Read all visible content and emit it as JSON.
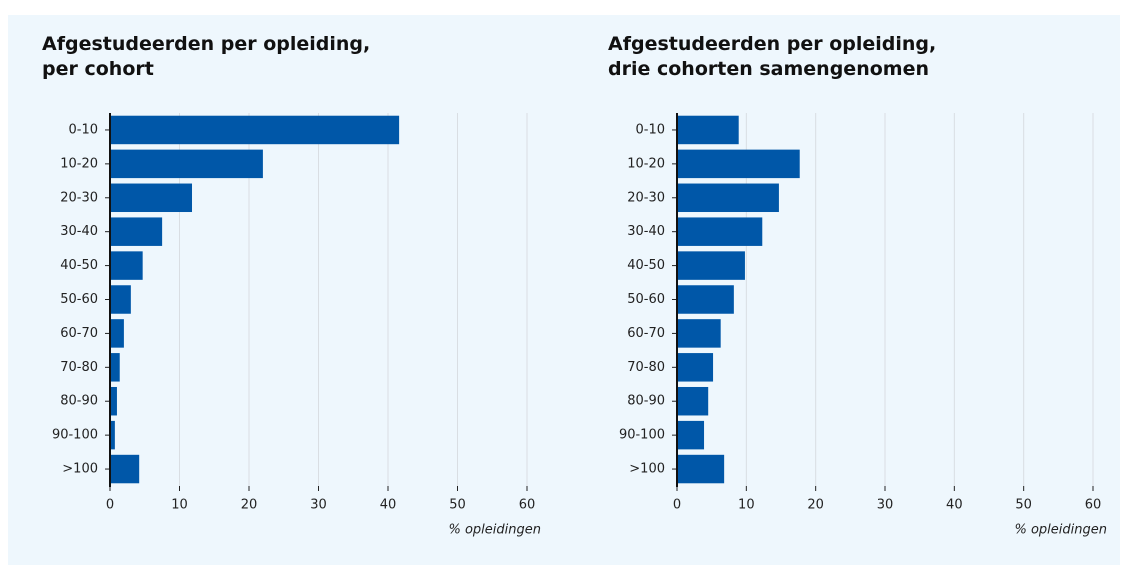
{
  "chart_data": [
    {
      "type": "bar",
      "orientation": "horizontal",
      "title": [
        "Afgestudeerden per opleiding,",
        "per cohort"
      ],
      "xlabel": "% opleidingen",
      "categories": [
        "0-10",
        "10-20",
        "20-30",
        "30-40",
        "40-50",
        "50-60",
        "60-70",
        "70-80",
        "80-90",
        "90-100",
        ">100"
      ],
      "values": [
        41.6,
        22.0,
        11.8,
        7.5,
        4.7,
        3.0,
        2.0,
        1.4,
        1.0,
        0.7,
        4.2
      ],
      "color": "#0057a8",
      "xlim": [
        0,
        60
      ],
      "xticks": [
        0,
        10,
        20,
        30,
        40,
        50,
        60
      ],
      "grid": true
    },
    {
      "type": "bar",
      "orientation": "horizontal",
      "title": [
        "Afgestudeerden per opleiding,",
        "drie cohorten samengenomen"
      ],
      "xlabel": "% opleidingen",
      "categories": [
        "0-10",
        "10-20",
        "20-30",
        "30-40",
        "40-50",
        "50-60",
        "60-70",
        "70-80",
        "80-90",
        "90-100",
        ">100"
      ],
      "values": [
        8.9,
        17.7,
        14.7,
        12.3,
        9.8,
        8.2,
        6.3,
        5.2,
        4.5,
        3.9,
        6.8
      ],
      "color": "#0057a8",
      "xlim": [
        0,
        60
      ],
      "xticks": [
        0,
        10,
        20,
        30,
        40,
        50,
        60
      ],
      "grid": true
    }
  ]
}
